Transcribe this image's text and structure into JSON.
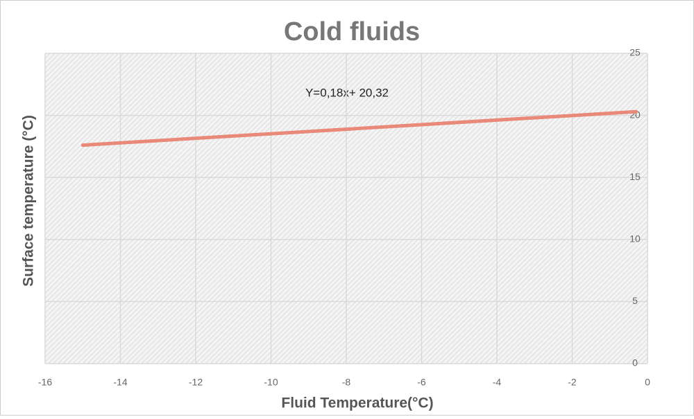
{
  "chart_data": {
    "type": "line",
    "title": "Cold fluids",
    "x_label": "Fluid Temperature(°C)",
    "y_label": "Surface temperature (°C)",
    "annotation": "Y=0,18x+ 20,32",
    "x": [
      -15,
      -0.3
    ],
    "series": [
      {
        "name": "Surface temperature",
        "color": "#e8897a",
        "values": [
          17.6,
          20.3
        ]
      }
    ],
    "xlim": [
      -16,
      0
    ],
    "xticks": [
      -16,
      -14,
      -12,
      -10,
      -8,
      -6,
      -4,
      -2,
      0
    ],
    "ylim": [
      0,
      25
    ],
    "yticks": [
      0,
      5,
      10,
      15,
      20,
      25
    ],
    "grid": true
  }
}
